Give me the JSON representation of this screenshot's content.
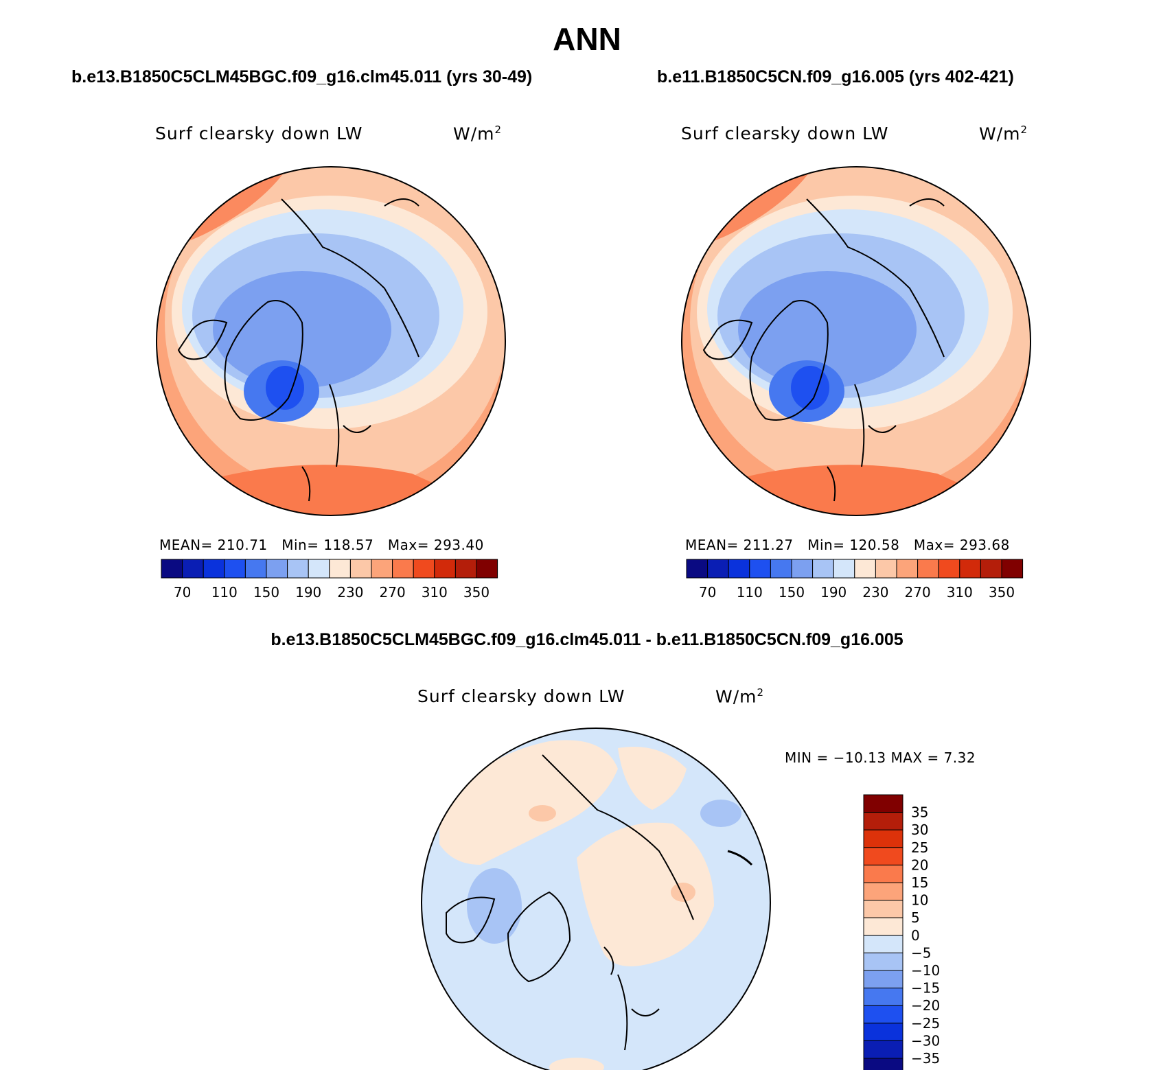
{
  "title": "ANN",
  "panels": [
    {
      "case": "b.e13.B1850C5CLM45BGC.f09_g16.clm45.011 (yrs 30-49)",
      "variable": "Surf clearsky down LW",
      "units": "W/m",
      "units_sup": "2",
      "stats": {
        "mean_label": "MEAN=",
        "mean": "210.71",
        "min_label": "Min=",
        "min": "118.57",
        "max_label": "Max=",
        "max": "293.40"
      }
    },
    {
      "case": "b.e11.B1850C5CN.f09_g16.005 (yrs 402-421)",
      "variable": "Surf clearsky down LW",
      "units": "W/m",
      "units_sup": "2",
      "stats": {
        "mean_label": "MEAN=",
        "mean": "211.27",
        "min_label": "Min=",
        "min": "120.58",
        "max_label": "Max=",
        "max": "293.68"
      }
    }
  ],
  "field_colorbar": {
    "colors": [
      "#0a0a82",
      "#0a1eb4",
      "#0a32dc",
      "#1e50f0",
      "#4678f0",
      "#7ca0f0",
      "#a8c4f5",
      "#d4e6fa",
      "#fde8d6",
      "#fcc8a8",
      "#fca47a",
      "#fa7a4c",
      "#f04a1e",
      "#d22a0a",
      "#b41e0a",
      "#800000"
    ],
    "tick_labels": [
      "70",
      "110",
      "150",
      "190",
      "230",
      "270",
      "310",
      "350"
    ]
  },
  "difference": {
    "title": "b.e13.B1850C5CLM45BGC.f09_g16.clm45.011 - b.e11.B1850C5CN.f09_g16.005",
    "variable": "Surf clearsky down LW",
    "units": "W/m",
    "units_sup": "2",
    "stats": "MIN = −10.13 MAX =    7.32",
    "colorbar": {
      "colors_top_to_bottom": [
        "#800000",
        "#b41e0a",
        "#dc320a",
        "#f04a1e",
        "#fa7a4c",
        "#fca47a",
        "#fcc8a8",
        "#fde8d6",
        "#d4e6fa",
        "#a8c4f5",
        "#7ca0f0",
        "#4678f0",
        "#1e50f0",
        "#0a32dc",
        "#0a1eb4",
        "#0a0a82"
      ],
      "tick_labels_top_to_bottom": [
        "35",
        "30",
        "25",
        "20",
        "15",
        "10",
        "5",
        "0",
        "−5",
        "−10",
        "−15",
        "−20",
        "−25",
        "−30",
        "−35"
      ]
    }
  }
}
